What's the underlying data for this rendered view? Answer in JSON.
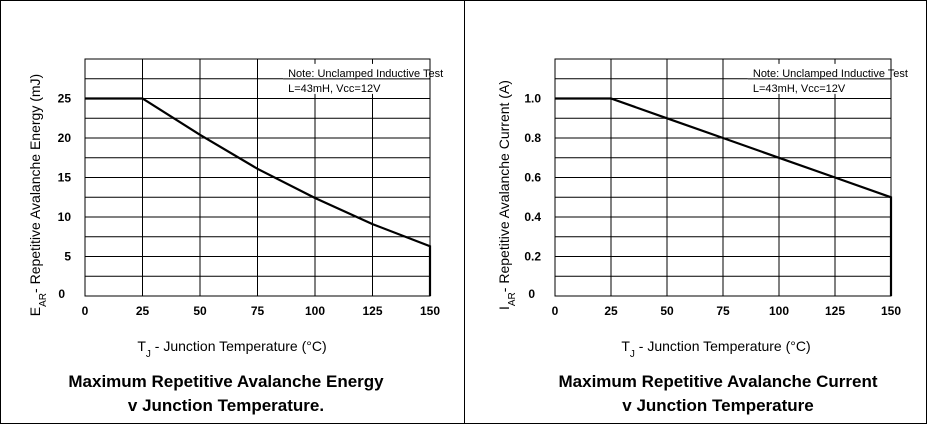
{
  "chart_data": [
    {
      "type": "line",
      "title": "Maximum Repetitive Avalanche Energy",
      "subtitle": "v Junction Temperature.",
      "ylabel_main": "E",
      "ylabel_sub": "AR",
      "ylabel_rest": "- Repetitive Avalanche Energy (mJ)",
      "xlabel": "T",
      "xlabel_sub": "J",
      "xlabel_rest": " - Junction Temperature (°C)",
      "note_line1": "Note: Unclamped Inductive Test",
      "note_line2": "L=43mH, Vcc=12V",
      "xlim": [
        0,
        150
      ],
      "ylim": [
        0,
        30
      ],
      "x_ticks": [
        "0",
        "25",
        "50",
        "75",
        "100",
        "125",
        "150"
      ],
      "y_ticks": [
        "0",
        "5",
        "10",
        "15",
        "20",
        "25"
      ],
      "grid": true,
      "series": [
        {
          "x": [
            0,
            25,
            50,
            75,
            100,
            125,
            150,
            150
          ],
          "y": [
            25,
            25,
            20.4,
            16.1,
            12.4,
            9.1,
            6.3,
            0
          ]
        }
      ]
    },
    {
      "type": "line",
      "title": "Maximum  Repetitive Avalanche Current",
      "subtitle": "v Junction Temperature",
      "ylabel_main": "I",
      "ylabel_sub": "AR",
      "ylabel_rest": "- Repetitive Avalanche Current (A)",
      "xlabel": "T",
      "xlabel_sub": "J",
      "xlabel_rest": " - Junction Temperature (°C)",
      "note_line1": "Note: Unclamped Inductive Test",
      "note_line2": "L=43mH, Vcc=12V",
      "xlim": [
        0,
        150
      ],
      "ylim": [
        0,
        1.2
      ],
      "x_ticks": [
        "0",
        "25",
        "50",
        "75",
        "100",
        "125",
        "150"
      ],
      "y_ticks": [
        "0",
        "0.2",
        "0.4",
        "0.6",
        "0.8",
        "1.0"
      ],
      "grid": true,
      "series": [
        {
          "x": [
            0,
            25,
            50,
            75,
            100,
            125,
            150,
            150
          ],
          "y": [
            1.0,
            1.0,
            0.9,
            0.8,
            0.7,
            0.6,
            0.5,
            0
          ]
        }
      ]
    }
  ]
}
